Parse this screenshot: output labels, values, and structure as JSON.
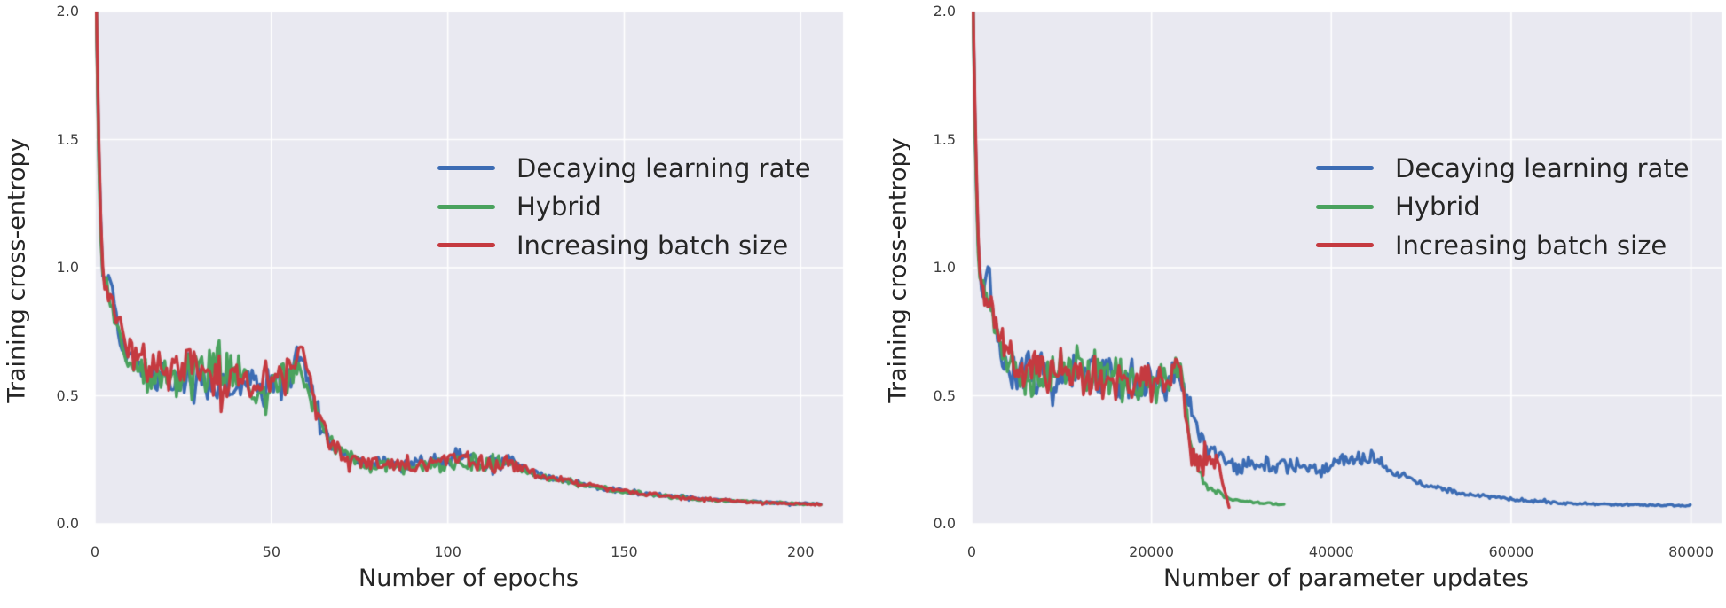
{
  "figure": {
    "background": "#ffffff",
    "plot_background": "#e9e9f1",
    "grid_color": "#ffffff",
    "title_color": "#262626",
    "tick_color": "#3f3f3f"
  },
  "chart_data": [
    {
      "type": "line",
      "title": "",
      "xlabel": "Number of epochs",
      "ylabel": "Training cross-entropy",
      "xlim": [
        0,
        212
      ],
      "ylim": [
        0,
        2
      ],
      "grid": true,
      "legend_position": "upper right inside, frameless",
      "xticks": [
        0,
        50,
        100,
        150,
        200
      ],
      "xtick_labels": [
        "0",
        "50",
        "100",
        "150",
        "200"
      ],
      "yticks": [
        0,
        0.5,
        1,
        1.5,
        2
      ],
      "ytick_labels": [
        "0.0",
        "0.5",
        "1.0",
        "1.5",
        "2.0"
      ],
      "points_format": "[x, mean_y, noise_amplitude] control points; curve = mean + high-frequency training noise",
      "sample_step_x": 0.55,
      "series": [
        {
          "name": "Decaying learning rate",
          "color": "#3c6cb4",
          "seed": 17,
          "points": [
            [
              0,
              2.35,
              0
            ],
            [
              1,
              1.5,
              0
            ],
            [
              2,
              1.0,
              0.03
            ],
            [
              3.2,
              0.93,
              0.05
            ],
            [
              4.6,
              1.0,
              0.04
            ],
            [
              5.4,
              0.88,
              0.04
            ],
            [
              7,
              0.75,
              0.04
            ],
            [
              9,
              0.66,
              0.05
            ],
            [
              13,
              0.6,
              0.07
            ],
            [
              20,
              0.59,
              0.08
            ],
            [
              30,
              0.57,
              0.085
            ],
            [
              40,
              0.56,
              0.08
            ],
            [
              48,
              0.53,
              0.07
            ],
            [
              54,
              0.55,
              0.07
            ],
            [
              58,
              0.62,
              0.06
            ],
            [
              60,
              0.57,
              0.06
            ],
            [
              62,
              0.46,
              0.05
            ],
            [
              65,
              0.36,
              0.035
            ],
            [
              68,
              0.3,
              0.03
            ],
            [
              72,
              0.26,
              0.025
            ],
            [
              78,
              0.235,
              0.025
            ],
            [
              88,
              0.225,
              0.03
            ],
            [
              96,
              0.235,
              0.03
            ],
            [
              104,
              0.25,
              0.035
            ],
            [
              112,
              0.24,
              0.035
            ],
            [
              118,
              0.245,
              0.03
            ],
            [
              122,
              0.21,
              0.018
            ],
            [
              127,
              0.185,
              0.014
            ],
            [
              137,
              0.158,
              0.011
            ],
            [
              147,
              0.133,
              0.009
            ],
            [
              158,
              0.115,
              0.008
            ],
            [
              172,
              0.098,
              0.006
            ],
            [
              188,
              0.085,
              0.005
            ],
            [
              206,
              0.076,
              0.004
            ]
          ]
        },
        {
          "name": "Hybrid",
          "color": "#4aa25e",
          "seed": 29,
          "points": [
            [
              0,
              2.35,
              0
            ],
            [
              1,
              1.45,
              0
            ],
            [
              2,
              0.98,
              0.03
            ],
            [
              3.2,
              0.91,
              0.05
            ],
            [
              5,
              0.85,
              0.05
            ],
            [
              7,
              0.74,
              0.04
            ],
            [
              9,
              0.65,
              0.05
            ],
            [
              13,
              0.6,
              0.07
            ],
            [
              20,
              0.585,
              0.085
            ],
            [
              28,
              0.575,
              0.09
            ],
            [
              33,
              0.6,
              0.1
            ],
            [
              36,
              0.57,
              0.085
            ],
            [
              40,
              0.59,
              0.1
            ],
            [
              44,
              0.55,
              0.08
            ],
            [
              48,
              0.525,
              0.07
            ],
            [
              54,
              0.55,
              0.07
            ],
            [
              58,
              0.61,
              0.06
            ],
            [
              60,
              0.56,
              0.06
            ],
            [
              62,
              0.45,
              0.05
            ],
            [
              65,
              0.35,
              0.035
            ],
            [
              68,
              0.29,
              0.03
            ],
            [
              72,
              0.255,
              0.025
            ],
            [
              78,
              0.23,
              0.025
            ],
            [
              88,
              0.22,
              0.03
            ],
            [
              96,
              0.23,
              0.03
            ],
            [
              104,
              0.245,
              0.035
            ],
            [
              112,
              0.235,
              0.035
            ],
            [
              118,
              0.24,
              0.03
            ],
            [
              122,
              0.205,
              0.018
            ],
            [
              127,
              0.18,
              0.014
            ],
            [
              137,
              0.155,
              0.011
            ],
            [
              147,
              0.13,
              0.009
            ],
            [
              158,
              0.113,
              0.008
            ],
            [
              172,
              0.096,
              0.006
            ],
            [
              188,
              0.083,
              0.005
            ],
            [
              206,
              0.075,
              0.004
            ]
          ]
        },
        {
          "name": "Increasing batch size",
          "color": "#c53a40",
          "seed": 43,
          "points": [
            [
              0,
              2.35,
              0
            ],
            [
              1,
              1.55,
              0
            ],
            [
              2,
              1.02,
              0.03
            ],
            [
              3.2,
              0.92,
              0.05
            ],
            [
              5,
              0.86,
              0.05
            ],
            [
              7,
              0.76,
              0.045
            ],
            [
              9,
              0.67,
              0.05
            ],
            [
              13,
              0.61,
              0.07
            ],
            [
              20,
              0.59,
              0.08
            ],
            [
              30,
              0.575,
              0.085
            ],
            [
              40,
              0.565,
              0.08
            ],
            [
              48,
              0.535,
              0.07
            ],
            [
              54,
              0.56,
              0.075
            ],
            [
              57.5,
              0.64,
              0.05
            ],
            [
              59.5,
              0.68,
              0.05
            ],
            [
              61,
              0.55,
              0.06
            ],
            [
              63,
              0.44,
              0.05
            ],
            [
              66,
              0.34,
              0.035
            ],
            [
              69,
              0.29,
              0.03
            ],
            [
              73,
              0.255,
              0.025
            ],
            [
              79,
              0.235,
              0.025
            ],
            [
              88,
              0.225,
              0.03
            ],
            [
              96,
              0.235,
              0.03
            ],
            [
              104,
              0.25,
              0.035
            ],
            [
              112,
              0.24,
              0.035
            ],
            [
              118,
              0.245,
              0.03
            ],
            [
              122,
              0.21,
              0.018
            ],
            [
              127,
              0.183,
              0.014
            ],
            [
              137,
              0.157,
              0.011
            ],
            [
              147,
              0.132,
              0.009
            ],
            [
              158,
              0.114,
              0.008
            ],
            [
              172,
              0.097,
              0.006
            ],
            [
              188,
              0.084,
              0.005
            ],
            [
              206,
              0.075,
              0.004
            ]
          ]
        }
      ]
    },
    {
      "type": "line",
      "title": "",
      "xlabel": "Number of parameter updates",
      "ylabel": "Training cross-entropy",
      "xlim": [
        0,
        83400
      ],
      "ylim": [
        0,
        2
      ],
      "grid": true,
      "legend_position": "upper right inside, frameless",
      "xticks": [
        0,
        20000,
        40000,
        60000,
        80000
      ],
      "xtick_labels": [
        "0",
        "20000",
        "40000",
        "60000",
        "80000"
      ],
      "yticks": [
        0,
        0.5,
        1,
        1.5,
        2
      ],
      "ytick_labels": [
        "0.0",
        "0.5",
        "1.0",
        "1.5",
        "2.0"
      ],
      "points_format": "[x, mean_y, noise_amplitude] control points; curve = mean + high-frequency training noise",
      "sample_step_x": 180,
      "series": [
        {
          "name": "Decaying learning rate",
          "color": "#3c6cb4",
          "seed": 17,
          "points": [
            [
              0,
              2.35,
              0
            ],
            [
              400,
              1.5,
              0
            ],
            [
              800,
              1.0,
              0.03
            ],
            [
              1300,
              0.93,
              0.05
            ],
            [
              1850,
              1.0,
              0.04
            ],
            [
              2200,
              0.88,
              0.04
            ],
            [
              2800,
              0.75,
              0.04
            ],
            [
              3600,
              0.66,
              0.05
            ],
            [
              5200,
              0.6,
              0.07
            ],
            [
              8000,
              0.59,
              0.08
            ],
            [
              12000,
              0.57,
              0.085
            ],
            [
              16000,
              0.56,
              0.08
            ],
            [
              19200,
              0.53,
              0.07
            ],
            [
              21600,
              0.55,
              0.07
            ],
            [
              23200,
              0.62,
              0.06
            ],
            [
              24000,
              0.5,
              0.05
            ],
            [
              24800,
              0.4,
              0.04
            ],
            [
              25600,
              0.33,
              0.03
            ],
            [
              26600,
              0.28,
              0.03
            ],
            [
              28000,
              0.245,
              0.03
            ],
            [
              31000,
              0.225,
              0.033
            ],
            [
              35000,
              0.23,
              0.033
            ],
            [
              39000,
              0.22,
              0.03
            ],
            [
              42000,
              0.235,
              0.035
            ],
            [
              44800,
              0.26,
              0.03
            ],
            [
              45600,
              0.24,
              0.03
            ],
            [
              46800,
              0.205,
              0.02
            ],
            [
              48500,
              0.175,
              0.014
            ],
            [
              51000,
              0.148,
              0.011
            ],
            [
              54000,
              0.122,
              0.009
            ],
            [
              57500,
              0.103,
              0.007
            ],
            [
              61000,
              0.09,
              0.006
            ],
            [
              66000,
              0.081,
              0.005
            ],
            [
              72000,
              0.075,
              0.004
            ],
            [
              80000,
              0.071,
              0.004
            ]
          ]
        },
        {
          "name": "Hybrid",
          "color": "#4aa25e",
          "seed": 29,
          "points": [
            [
              0,
              2.35,
              0
            ],
            [
              400,
              1.45,
              0
            ],
            [
              800,
              0.98,
              0.03
            ],
            [
              1300,
              0.91,
              0.05
            ],
            [
              2000,
              0.85,
              0.05
            ],
            [
              2800,
              0.74,
              0.04
            ],
            [
              3600,
              0.65,
              0.05
            ],
            [
              5200,
              0.6,
              0.07
            ],
            [
              8000,
              0.585,
              0.085
            ],
            [
              11000,
              0.575,
              0.09
            ],
            [
              13200,
              0.6,
              0.1
            ],
            [
              14400,
              0.57,
              0.085
            ],
            [
              16000,
              0.59,
              0.1
            ],
            [
              17600,
              0.55,
              0.08
            ],
            [
              19200,
              0.525,
              0.07
            ],
            [
              21600,
              0.55,
              0.07
            ],
            [
              23200,
              0.6,
              0.06
            ],
            [
              23800,
              0.45,
              0.05
            ],
            [
              24400,
              0.3,
              0.04
            ],
            [
              25200,
              0.2,
              0.025
            ],
            [
              26000,
              0.155,
              0.018
            ],
            [
              27000,
              0.125,
              0.012
            ],
            [
              28500,
              0.103,
              0.008
            ],
            [
              30000,
              0.09,
              0.005
            ],
            [
              32000,
              0.081,
              0.004
            ],
            [
              34800,
              0.075,
              0.003
            ]
          ]
        },
        {
          "name": "Increasing batch size",
          "color": "#c53a40",
          "seed": 43,
          "points": [
            [
              0,
              2.35,
              0
            ],
            [
              400,
              1.55,
              0
            ],
            [
              800,
              1.02,
              0.03
            ],
            [
              1300,
              0.92,
              0.05
            ],
            [
              2000,
              0.86,
              0.05
            ],
            [
              2800,
              0.76,
              0.045
            ],
            [
              3600,
              0.67,
              0.05
            ],
            [
              5200,
              0.61,
              0.07
            ],
            [
              8000,
              0.59,
              0.08
            ],
            [
              12000,
              0.575,
              0.085
            ],
            [
              16000,
              0.565,
              0.08
            ],
            [
              19200,
              0.535,
              0.07
            ],
            [
              21600,
              0.56,
              0.075
            ],
            [
              22800,
              0.66,
              0.05
            ],
            [
              23400,
              0.55,
              0.06
            ],
            [
              23900,
              0.38,
              0.05
            ],
            [
              24400,
              0.27,
              0.05
            ],
            [
              25200,
              0.22,
              0.05
            ],
            [
              26200,
              0.22,
              0.05
            ],
            [
              27000,
              0.245,
              0.05
            ],
            [
              27600,
              0.2,
              0.03
            ],
            [
              28100,
              0.13,
              0.015
            ],
            [
              28700,
              0.06,
              0.005
            ]
          ]
        }
      ]
    }
  ]
}
